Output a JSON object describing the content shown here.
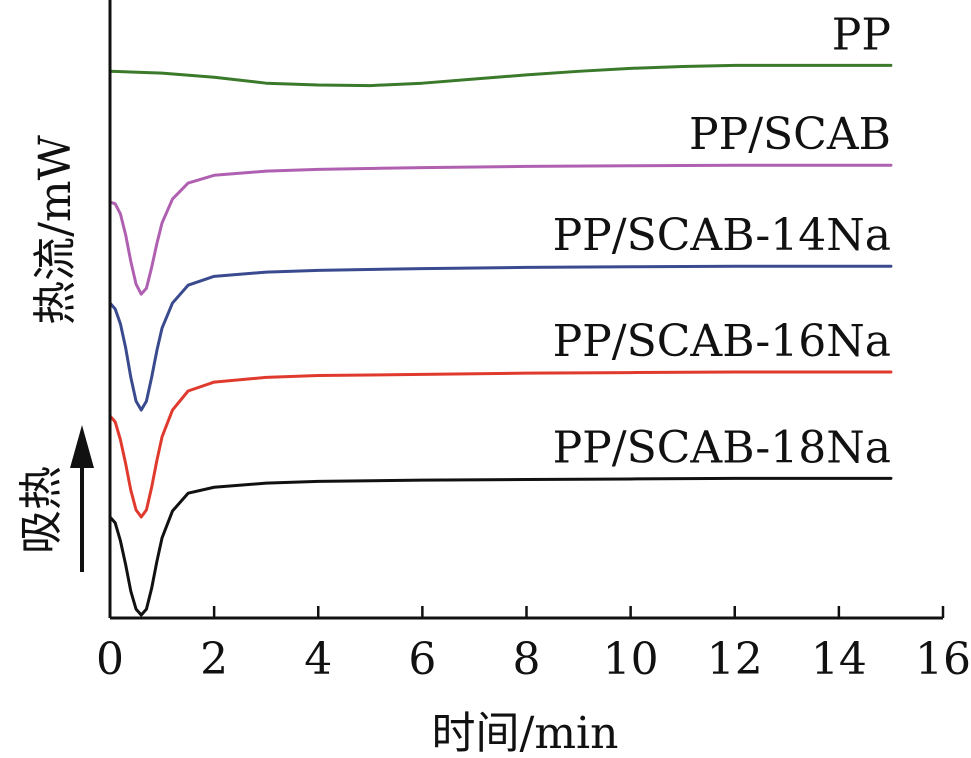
{
  "chart_data": {
    "type": "line",
    "xlabel": "时间/min",
    "ylabel": "热流/mW",
    "endo_label": "吸热",
    "xlim": [
      0,
      16
    ],
    "xticks": [
      0,
      2,
      4,
      6,
      8,
      10,
      12,
      14,
      16
    ],
    "grid": false,
    "legend": "labels above each curve, right-aligned",
    "y_scale_note": "y values in arbitrary heat-flow units with vertical offsets; no y tick labels shown",
    "ylim": [
      0,
      10.4
    ],
    "series": [
      {
        "name": "PP",
        "color": "#3a7a2a",
        "points": [
          [
            0,
            9.2
          ],
          [
            1,
            9.17
          ],
          [
            2,
            9.1
          ],
          [
            3,
            9.0
          ],
          [
            4,
            8.97
          ],
          [
            5,
            8.96
          ],
          [
            6,
            9.0
          ],
          [
            7,
            9.07
          ],
          [
            8,
            9.14
          ],
          [
            9,
            9.2
          ],
          [
            10,
            9.25
          ],
          [
            11,
            9.28
          ],
          [
            12,
            9.3
          ],
          [
            13,
            9.3
          ],
          [
            14,
            9.3
          ],
          [
            15,
            9.3
          ]
        ]
      },
      {
        "name": "PP/SCAB",
        "color": "#b060b0",
        "points": [
          [
            0.0,
            7.0
          ],
          [
            0.1,
            6.97
          ],
          [
            0.2,
            6.8
          ],
          [
            0.3,
            6.45
          ],
          [
            0.4,
            6.0
          ],
          [
            0.5,
            5.62
          ],
          [
            0.6,
            5.45
          ],
          [
            0.7,
            5.55
          ],
          [
            0.8,
            5.9
          ],
          [
            0.9,
            6.3
          ],
          [
            1.0,
            6.65
          ],
          [
            1.2,
            7.05
          ],
          [
            1.5,
            7.32
          ],
          [
            2.0,
            7.45
          ],
          [
            3.0,
            7.52
          ],
          [
            4.0,
            7.55
          ],
          [
            6.0,
            7.58
          ],
          [
            8.0,
            7.6
          ],
          [
            10.0,
            7.61
          ],
          [
            12.0,
            7.62
          ],
          [
            15.0,
            7.62
          ]
        ]
      },
      {
        "name": "PP/SCAB-14Na",
        "color": "#3a4a8e",
        "points": [
          [
            0.0,
            5.3
          ],
          [
            0.1,
            5.2
          ],
          [
            0.2,
            4.95
          ],
          [
            0.3,
            4.55
          ],
          [
            0.4,
            4.05
          ],
          [
            0.5,
            3.65
          ],
          [
            0.6,
            3.5
          ],
          [
            0.7,
            3.65
          ],
          [
            0.8,
            4.05
          ],
          [
            0.9,
            4.5
          ],
          [
            1.0,
            4.88
          ],
          [
            1.2,
            5.3
          ],
          [
            1.5,
            5.6
          ],
          [
            2.0,
            5.75
          ],
          [
            3.0,
            5.82
          ],
          [
            4.0,
            5.85
          ],
          [
            6.0,
            5.88
          ],
          [
            8.0,
            5.9
          ],
          [
            10.0,
            5.91
          ],
          [
            12.0,
            5.92
          ],
          [
            15.0,
            5.92
          ]
        ]
      },
      {
        "name": "PP/SCAB-16Na",
        "color": "#e03a2e",
        "points": [
          [
            0.0,
            3.4
          ],
          [
            0.1,
            3.3
          ],
          [
            0.2,
            3.0
          ],
          [
            0.3,
            2.6
          ],
          [
            0.4,
            2.15
          ],
          [
            0.5,
            1.82
          ],
          [
            0.6,
            1.7
          ],
          [
            0.7,
            1.82
          ],
          [
            0.8,
            2.2
          ],
          [
            0.9,
            2.65
          ],
          [
            1.0,
            3.05
          ],
          [
            1.2,
            3.5
          ],
          [
            1.5,
            3.82
          ],
          [
            2.0,
            3.97
          ],
          [
            3.0,
            4.05
          ],
          [
            4.0,
            4.08
          ],
          [
            6.0,
            4.1
          ],
          [
            8.0,
            4.12
          ],
          [
            10.0,
            4.13
          ],
          [
            12.0,
            4.14
          ],
          [
            15.0,
            4.14
          ]
        ]
      },
      {
        "name": "PP/SCAB-18Na",
        "color": "#111111",
        "points": [
          [
            0.0,
            1.7
          ],
          [
            0.1,
            1.6
          ],
          [
            0.2,
            1.3
          ],
          [
            0.3,
            0.9
          ],
          [
            0.4,
            0.45
          ],
          [
            0.5,
            0.15
          ],
          [
            0.6,
            0.05
          ],
          [
            0.7,
            0.15
          ],
          [
            0.8,
            0.5
          ],
          [
            0.9,
            0.95
          ],
          [
            1.0,
            1.35
          ],
          [
            1.2,
            1.8
          ],
          [
            1.5,
            2.1
          ],
          [
            2.0,
            2.2
          ],
          [
            3.0,
            2.27
          ],
          [
            4.0,
            2.3
          ],
          [
            6.0,
            2.32
          ],
          [
            8.0,
            2.33
          ],
          [
            10.0,
            2.34
          ],
          [
            12.0,
            2.35
          ],
          [
            15.0,
            2.35
          ]
        ]
      }
    ]
  }
}
